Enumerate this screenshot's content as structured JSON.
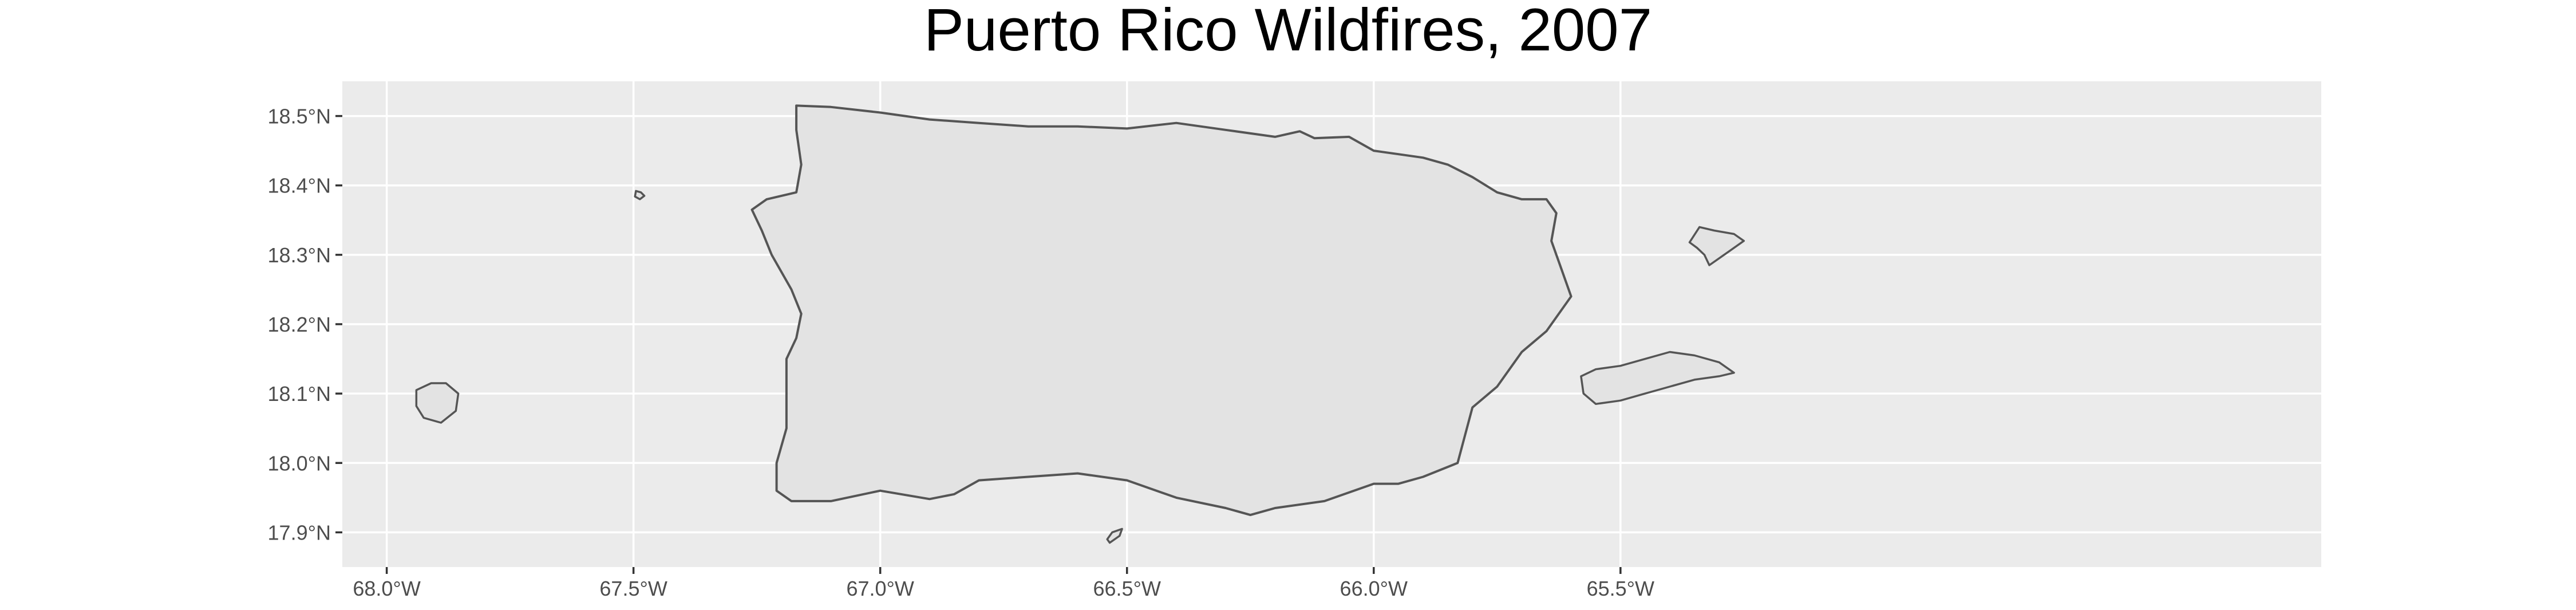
{
  "chart_data": {
    "type": "map",
    "title": "Puerto Rico Wildfires, 2007",
    "xlabel": "",
    "ylabel": "",
    "xlim": [
      -68.09,
      -64.08
    ],
    "ylim": [
      17.85,
      18.55
    ],
    "x_ticks": [
      {
        "value": -68.0,
        "label": "68.0°W"
      },
      {
        "value": -67.5,
        "label": "67.5°W"
      },
      {
        "value": -67.0,
        "label": "67.0°W"
      },
      {
        "value": -66.5,
        "label": "66.5°W"
      },
      {
        "value": -66.0,
        "label": "66.0°W"
      },
      {
        "value": -65.5,
        "label": "65.5°W"
      }
    ],
    "y_ticks": [
      {
        "value": 18.5,
        "label": "18.5°N"
      },
      {
        "value": 18.4,
        "label": "18.4°N"
      },
      {
        "value": 18.3,
        "label": "18.3°N"
      },
      {
        "value": 18.2,
        "label": "18.2°N"
      },
      {
        "value": 18.1,
        "label": "18.1°N"
      },
      {
        "value": 18.0,
        "label": "18.0°N"
      },
      {
        "value": 17.9,
        "label": "17.9°N"
      }
    ],
    "grid": true,
    "panel_color": "#ebebeb",
    "grid_color": "#ffffff",
    "land_fill": "#e3e3e3",
    "coastline_color": "#555555",
    "features": [
      {
        "name": "Puerto Rico main island",
        "coords": [
          [
            -67.17,
            18.515
          ],
          [
            -67.1,
            18.513
          ],
          [
            -67.0,
            18.505
          ],
          [
            -66.9,
            18.495
          ],
          [
            -66.8,
            18.49
          ],
          [
            -66.7,
            18.485
          ],
          [
            -66.6,
            18.485
          ],
          [
            -66.5,
            18.482
          ],
          [
            -66.4,
            18.49
          ],
          [
            -66.3,
            18.48
          ],
          [
            -66.2,
            18.47
          ],
          [
            -66.15,
            18.478
          ],
          [
            -66.12,
            18.468
          ],
          [
            -66.05,
            18.47
          ],
          [
            -66.0,
            18.45
          ],
          [
            -65.95,
            18.445
          ],
          [
            -65.9,
            18.44
          ],
          [
            -65.85,
            18.43
          ],
          [
            -65.8,
            18.412
          ],
          [
            -65.75,
            18.39
          ],
          [
            -65.7,
            18.38
          ],
          [
            -65.65,
            18.38
          ],
          [
            -65.63,
            18.36
          ],
          [
            -65.64,
            18.32
          ],
          [
            -65.62,
            18.28
          ],
          [
            -65.6,
            18.24
          ],
          [
            -65.65,
            18.19
          ],
          [
            -65.7,
            18.16
          ],
          [
            -65.75,
            18.11
          ],
          [
            -65.8,
            18.08
          ],
          [
            -65.83,
            18.0
          ],
          [
            -65.9,
            17.98
          ],
          [
            -65.95,
            17.97
          ],
          [
            -66.0,
            17.97
          ],
          [
            -66.1,
            17.945
          ],
          [
            -66.2,
            17.935
          ],
          [
            -66.25,
            17.925
          ],
          [
            -66.3,
            17.935
          ],
          [
            -66.4,
            17.95
          ],
          [
            -66.5,
            17.975
          ],
          [
            -66.6,
            17.985
          ],
          [
            -66.7,
            17.98
          ],
          [
            -66.8,
            17.975
          ],
          [
            -66.85,
            17.955
          ],
          [
            -66.9,
            17.948
          ],
          [
            -67.0,
            17.96
          ],
          [
            -67.1,
            17.945
          ],
          [
            -67.18,
            17.945
          ],
          [
            -67.21,
            17.96
          ],
          [
            -67.21,
            18.0
          ],
          [
            -67.19,
            18.05
          ],
          [
            -67.19,
            18.1
          ],
          [
            -67.19,
            18.15
          ],
          [
            -67.17,
            18.18
          ],
          [
            -67.16,
            18.215
          ],
          [
            -67.18,
            18.25
          ],
          [
            -67.22,
            18.3
          ],
          [
            -67.24,
            18.335
          ],
          [
            -67.26,
            18.365
          ],
          [
            -67.23,
            18.38
          ],
          [
            -67.17,
            18.39
          ],
          [
            -67.16,
            18.43
          ],
          [
            -67.17,
            18.48
          ]
        ]
      },
      {
        "name": "Vieques",
        "coords": [
          [
            -65.58,
            18.125
          ],
          [
            -65.55,
            18.135
          ],
          [
            -65.5,
            18.14
          ],
          [
            -65.45,
            18.15
          ],
          [
            -65.4,
            18.16
          ],
          [
            -65.35,
            18.155
          ],
          [
            -65.3,
            18.145
          ],
          [
            -65.27,
            18.13
          ],
          [
            -65.3,
            18.125
          ],
          [
            -65.35,
            18.12
          ],
          [
            -65.4,
            18.11
          ],
          [
            -65.45,
            18.1
          ],
          [
            -65.5,
            18.09
          ],
          [
            -65.55,
            18.085
          ],
          [
            -65.575,
            18.1
          ]
        ]
      },
      {
        "name": "Culebra",
        "coords": [
          [
            -65.34,
            18.34
          ],
          [
            -65.31,
            18.335
          ],
          [
            -65.27,
            18.33
          ],
          [
            -65.25,
            18.32
          ],
          [
            -65.28,
            18.305
          ],
          [
            -65.3,
            18.295
          ],
          [
            -65.32,
            18.285
          ],
          [
            -65.33,
            18.3
          ],
          [
            -65.345,
            18.31
          ],
          [
            -65.36,
            18.318
          ]
        ]
      },
      {
        "name": "Mona",
        "coords": [
          [
            -67.94,
            18.105
          ],
          [
            -67.91,
            18.115
          ],
          [
            -67.88,
            18.115
          ],
          [
            -67.855,
            18.1
          ],
          [
            -67.86,
            18.075
          ],
          [
            -67.89,
            18.058
          ],
          [
            -67.925,
            18.065
          ],
          [
            -67.94,
            18.082
          ]
        ]
      },
      {
        "name": "Desecheo",
        "coords": [
          [
            -67.495,
            18.392
          ],
          [
            -67.485,
            18.39
          ],
          [
            -67.478,
            18.385
          ],
          [
            -67.487,
            18.38
          ],
          [
            -67.497,
            18.384
          ]
        ]
      },
      {
        "name": "Caja de Muertos",
        "coords": [
          [
            -66.53,
            17.9
          ],
          [
            -66.51,
            17.905
          ],
          [
            -66.515,
            17.895
          ],
          [
            -66.535,
            17.885
          ],
          [
            -66.54,
            17.89
          ]
        ]
      }
    ]
  }
}
